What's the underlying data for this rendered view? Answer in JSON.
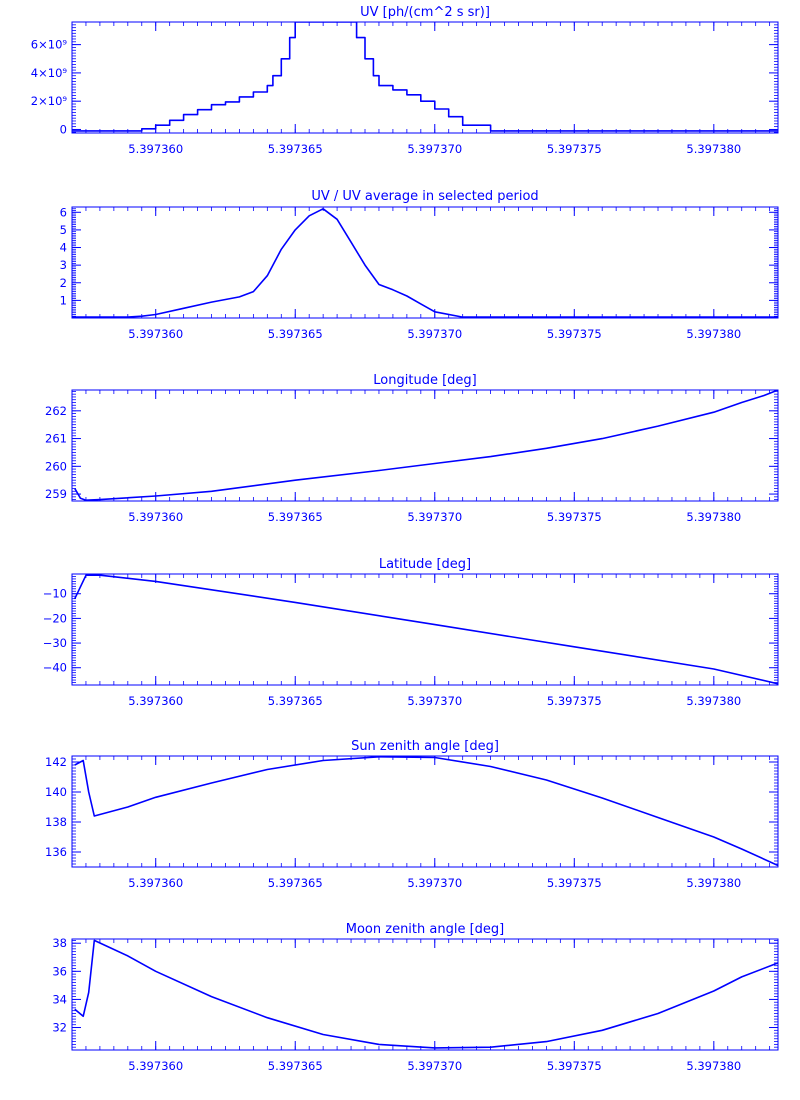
{
  "colors": {
    "ink": "#0000ff",
    "background": "#ffffff"
  },
  "chart_data": [
    {
      "type": "line",
      "title": "UV [ph/(cm^2 s sr)]",
      "xlabel": "",
      "ylabel": "",
      "xlim": [
        5.397357,
        5.3973823
      ],
      "ylim": [
        -250000000.0,
        7600000000.0
      ],
      "x_ticks": [
        {
          "value": 5.39736,
          "label": "5.397360"
        },
        {
          "value": 5.397365,
          "label": "5.397365"
        },
        {
          "value": 5.39737,
          "label": "5.397370"
        },
        {
          "value": 5.397375,
          "label": "5.397375"
        },
        {
          "value": 5.39738,
          "label": "5.397380"
        }
      ],
      "y_ticks": [
        {
          "value": 0,
          "label": "0"
        },
        {
          "value": 2000000000.0,
          "label": "2×10⁹"
        },
        {
          "value": 4000000000.0,
          "label": "4×10⁹"
        },
        {
          "value": 6000000000.0,
          "label": "6×10⁹"
        }
      ],
      "series": [
        {
          "x": [
            5.397357,
            5.397359,
            5.3973595,
            5.39736,
            5.3973605,
            5.397361,
            5.3973615,
            5.397362,
            5.3973625,
            5.397363,
            5.3973635,
            5.397364,
            5.3973642,
            5.3973645,
            5.3973648,
            5.397365,
            5.3973652,
            5.3973655,
            5.397366,
            5.3973665,
            5.3973668,
            5.397367,
            5.3973672,
            5.3973675,
            5.3973678,
            5.397368,
            5.3973685,
            5.397369,
            5.3973695,
            5.39737,
            5.3973705,
            5.397371,
            5.397372,
            5.397376,
            5.39738,
            5.3973823
          ],
          "y": [
            -100000000.0,
            -100000000.0,
            50000000.0,
            300000000.0,
            650000000.0,
            1050000000.0,
            1400000000.0,
            1750000000.0,
            1950000000.0,
            2300000000.0,
            2650000000.0,
            3100000000.0,
            3800000000.0,
            5000000000.0,
            6500000000.0,
            7600000000.0,
            7600000000.0,
            7600000000.0,
            7600000000.0,
            7600000000.0,
            7600000000.0,
            7600000000.0,
            6500000000.0,
            5000000000.0,
            3800000000.0,
            3100000000.0,
            2800000000.0,
            2450000000.0,
            2000000000.0,
            1450000000.0,
            900000000.0,
            300000000.0,
            -100000000.0,
            -100000000.0,
            -100000000.0,
            -100000000.0
          ]
        }
      ]
    },
    {
      "type": "line",
      "title": "UV / UV average in selected period",
      "xlabel": "",
      "ylabel": "",
      "xlim": [
        5.397357,
        5.3973823
      ],
      "ylim": [
        0,
        6.3
      ],
      "x_ticks": [
        {
          "value": 5.39736,
          "label": "5.397360"
        },
        {
          "value": 5.397365,
          "label": "5.397365"
        },
        {
          "value": 5.39737,
          "label": "5.397370"
        },
        {
          "value": 5.397375,
          "label": "5.397375"
        },
        {
          "value": 5.39738,
          "label": "5.397380"
        }
      ],
      "y_ticks": [
        {
          "value": 1,
          "label": "1"
        },
        {
          "value": 2,
          "label": "2"
        },
        {
          "value": 3,
          "label": "3"
        },
        {
          "value": 4,
          "label": "4"
        },
        {
          "value": 5,
          "label": "5"
        },
        {
          "value": 6,
          "label": "6"
        }
      ],
      "series": [
        {
          "x": [
            5.397357,
            5.397359,
            5.3973595,
            5.39736,
            5.397361,
            5.397362,
            5.397363,
            5.3973635,
            5.397364,
            5.3973645,
            5.397365,
            5.3973655,
            5.397366,
            5.3973665,
            5.397367,
            5.3973675,
            5.397368,
            5.3973685,
            5.397369,
            5.3973695,
            5.39737,
            5.397371,
            5.397375,
            5.39738,
            5.3973823
          ],
          "y": [
            0.05,
            0.05,
            0.1,
            0.2,
            0.55,
            0.9,
            1.2,
            1.5,
            2.4,
            3.9,
            5.0,
            5.8,
            6.2,
            5.6,
            4.3,
            3.0,
            1.9,
            1.6,
            1.25,
            0.8,
            0.35,
            0.05,
            0.05,
            0.05,
            0.05
          ]
        }
      ]
    },
    {
      "type": "line",
      "title": "Longitude [deg]",
      "xlabel": "",
      "ylabel": "",
      "xlim": [
        5.397357,
        5.3973823
      ],
      "ylim": [
        258.75,
        262.75
      ],
      "x_ticks": [
        {
          "value": 5.39736,
          "label": "5.397360"
        },
        {
          "value": 5.397365,
          "label": "5.397365"
        },
        {
          "value": 5.39737,
          "label": "5.397370"
        },
        {
          "value": 5.397375,
          "label": "5.397375"
        },
        {
          "value": 5.39738,
          "label": "5.397380"
        }
      ],
      "y_ticks": [
        {
          "value": 259,
          "label": "259"
        },
        {
          "value": 260,
          "label": "260"
        },
        {
          "value": 261,
          "label": "261"
        },
        {
          "value": 262,
          "label": "262"
        }
      ],
      "series": [
        {
          "x": [
            5.3973571,
            5.3973573,
            5.3973575,
            5.397358,
            5.39736,
            5.397362,
            5.397365,
            5.397368,
            5.39737,
            5.397372,
            5.397374,
            5.397376,
            5.397378,
            5.39738,
            5.397381,
            5.3973818,
            5.3973823
          ],
          "y": [
            259.2,
            258.85,
            258.78,
            258.8,
            258.93,
            259.1,
            259.5,
            259.85,
            260.1,
            260.35,
            260.65,
            261.0,
            261.45,
            261.95,
            262.3,
            262.55,
            262.75
          ]
        }
      ]
    },
    {
      "type": "line",
      "title": "Latitude [deg]",
      "xlabel": "",
      "ylabel": "",
      "xlim": [
        5.397357,
        5.3973823
      ],
      "ylim": [
        -47,
        -2
      ],
      "x_ticks": [
        {
          "value": 5.39736,
          "label": "5.397360"
        },
        {
          "value": 5.397365,
          "label": "5.397365"
        },
        {
          "value": 5.39737,
          "label": "5.397370"
        },
        {
          "value": 5.397375,
          "label": "5.397375"
        },
        {
          "value": 5.39738,
          "label": "5.397380"
        }
      ],
      "y_ticks": [
        {
          "value": -40,
          "label": "−40"
        },
        {
          "value": -30,
          "label": "−30"
        },
        {
          "value": -20,
          "label": "−20"
        },
        {
          "value": -10,
          "label": "−10"
        }
      ],
      "series": [
        {
          "x": [
            5.3973571,
            5.3973575,
            5.397358,
            5.39736,
            5.397365,
            5.39737,
            5.397375,
            5.39738,
            5.3973823
          ],
          "y": [
            -12,
            -2.5,
            -2.5,
            -5.0,
            -13.5,
            -22.5,
            -31.5,
            -40.5,
            -46.5
          ]
        }
      ]
    },
    {
      "type": "line",
      "title": "Sun zenith angle [deg]",
      "xlabel": "",
      "ylabel": "",
      "xlim": [
        5.397357,
        5.3973823
      ],
      "ylim": [
        135.0,
        142.4
      ],
      "x_ticks": [
        {
          "value": 5.39736,
          "label": "5.397360"
        },
        {
          "value": 5.397365,
          "label": "5.397365"
        },
        {
          "value": 5.39737,
          "label": "5.397370"
        },
        {
          "value": 5.397375,
          "label": "5.397375"
        },
        {
          "value": 5.39738,
          "label": "5.397380"
        }
      ],
      "y_ticks": [
        {
          "value": 136,
          "label": "136"
        },
        {
          "value": 138,
          "label": "138"
        },
        {
          "value": 140,
          "label": "140"
        },
        {
          "value": 142,
          "label": "142"
        }
      ],
      "series": [
        {
          "x": [
            5.3973571,
            5.3973574,
            5.3973576,
            5.3973578,
            5.397359,
            5.39736,
            5.397362,
            5.397364,
            5.397366,
            5.397368,
            5.39737,
            5.397372,
            5.397374,
            5.397376,
            5.397378,
            5.39738,
            5.397381,
            5.3973823
          ],
          "y": [
            141.8,
            142.1,
            140.0,
            138.4,
            139.0,
            139.65,
            140.6,
            141.5,
            142.1,
            142.35,
            142.3,
            141.7,
            140.8,
            139.6,
            138.3,
            137.0,
            136.2,
            135.1
          ]
        }
      ]
    },
    {
      "type": "line",
      "title": "Moon zenith angle [deg]",
      "xlabel": "",
      "ylabel": "",
      "xlim": [
        5.397357,
        5.3973823
      ],
      "ylim": [
        30.4,
        38.3
      ],
      "x_ticks": [
        {
          "value": 5.39736,
          "label": "5.397360"
        },
        {
          "value": 5.397365,
          "label": "5.397365"
        },
        {
          "value": 5.39737,
          "label": "5.397370"
        },
        {
          "value": 5.397375,
          "label": "5.397375"
        },
        {
          "value": 5.39738,
          "label": "5.397380"
        }
      ],
      "y_ticks": [
        {
          "value": 32,
          "label": "32"
        },
        {
          "value": 34,
          "label": "34"
        },
        {
          "value": 36,
          "label": "36"
        },
        {
          "value": 38,
          "label": "38"
        }
      ],
      "series": [
        {
          "x": [
            5.3973571,
            5.3973574,
            5.3973576,
            5.3973578,
            5.397359,
            5.39736,
            5.397362,
            5.397364,
            5.397366,
            5.397368,
            5.39737,
            5.397372,
            5.397374,
            5.397376,
            5.397378,
            5.39738,
            5.397381,
            5.3973823
          ],
          "y": [
            33.3,
            32.8,
            34.5,
            38.2,
            37.1,
            36.0,
            34.2,
            32.7,
            31.5,
            30.8,
            30.55,
            30.6,
            31.0,
            31.8,
            33.0,
            34.6,
            35.6,
            36.6
          ]
        }
      ]
    }
  ]
}
